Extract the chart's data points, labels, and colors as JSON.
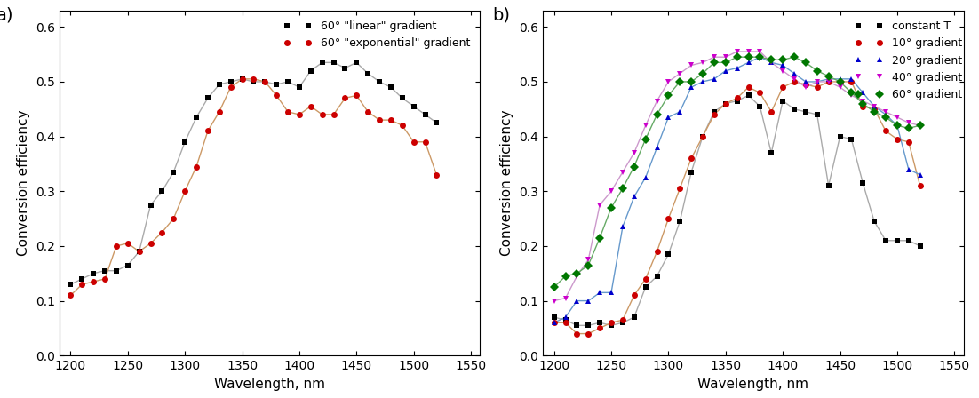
{
  "panel_a": {
    "linear_x": [
      1200,
      1210,
      1220,
      1230,
      1240,
      1250,
      1260,
      1270,
      1280,
      1290,
      1300,
      1310,
      1320,
      1330,
      1340,
      1350,
      1360,
      1370,
      1380,
      1390,
      1400,
      1410,
      1420,
      1430,
      1440,
      1450,
      1460,
      1470,
      1480,
      1490,
      1500,
      1510,
      1520
    ],
    "linear_y": [
      0.13,
      0.14,
      0.15,
      0.155,
      0.155,
      0.165,
      0.19,
      0.275,
      0.3,
      0.335,
      0.39,
      0.435,
      0.47,
      0.495,
      0.5,
      0.505,
      0.5,
      0.5,
      0.495,
      0.5,
      0.49,
      0.52,
      0.535,
      0.535,
      0.525,
      0.535,
      0.515,
      0.5,
      0.49,
      0.47,
      0.455,
      0.44,
      0.425
    ],
    "exp_x": [
      1200,
      1210,
      1220,
      1230,
      1240,
      1250,
      1260,
      1270,
      1280,
      1290,
      1300,
      1310,
      1320,
      1330,
      1340,
      1350,
      1360,
      1370,
      1380,
      1390,
      1400,
      1410,
      1420,
      1430,
      1440,
      1450,
      1460,
      1470,
      1480,
      1490,
      1500,
      1510,
      1520
    ],
    "exp_y": [
      0.11,
      0.13,
      0.135,
      0.14,
      0.2,
      0.205,
      0.19,
      0.205,
      0.225,
      0.25,
      0.3,
      0.345,
      0.41,
      0.445,
      0.49,
      0.505,
      0.505,
      0.5,
      0.475,
      0.445,
      0.44,
      0.455,
      0.44,
      0.44,
      0.47,
      0.475,
      0.445,
      0.43,
      0.43,
      0.42,
      0.39,
      0.39,
      0.33
    ],
    "label_linear": "60° \"linear\" gradient",
    "label_exp": "60° \"exponential\" gradient",
    "color_linear": "#000000",
    "color_exp": "#cc0000",
    "line_color_linear": "#aaaaaa",
    "line_color_exp": "#cc9966",
    "xlabel": "Wavelength, nm",
    "ylabel": "Conversion efficiency",
    "xlim": [
      1190,
      1558
    ],
    "ylim": [
      0.0,
      0.63
    ],
    "yticks": [
      0.0,
      0.1,
      0.2,
      0.3,
      0.4,
      0.5,
      0.6
    ],
    "xticks": [
      1200,
      1250,
      1300,
      1350,
      1400,
      1450,
      1500,
      1550
    ],
    "panel_label": "a)"
  },
  "panel_b": {
    "const_x": [
      1200,
      1210,
      1220,
      1230,
      1240,
      1250,
      1260,
      1270,
      1280,
      1290,
      1300,
      1310,
      1320,
      1330,
      1340,
      1350,
      1360,
      1370,
      1380,
      1390,
      1400,
      1410,
      1420,
      1430,
      1440,
      1450,
      1460,
      1470,
      1480,
      1490,
      1500,
      1510,
      1520
    ],
    "const_y": [
      0.07,
      0.065,
      0.055,
      0.055,
      0.06,
      0.055,
      0.06,
      0.07,
      0.125,
      0.145,
      0.185,
      0.245,
      0.335,
      0.4,
      0.445,
      0.46,
      0.465,
      0.475,
      0.455,
      0.37,
      0.465,
      0.45,
      0.445,
      0.44,
      0.31,
      0.4,
      0.395,
      0.315,
      0.245,
      0.21,
      0.21,
      0.21,
      0.2
    ],
    "grad10_x": [
      1200,
      1210,
      1220,
      1230,
      1240,
      1250,
      1260,
      1270,
      1280,
      1290,
      1300,
      1310,
      1320,
      1330,
      1340,
      1350,
      1360,
      1370,
      1380,
      1390,
      1400,
      1410,
      1420,
      1430,
      1440,
      1450,
      1460,
      1470,
      1480,
      1490,
      1500,
      1510,
      1520
    ],
    "grad10_y": [
      0.06,
      0.06,
      0.04,
      0.04,
      0.05,
      0.06,
      0.065,
      0.11,
      0.14,
      0.19,
      0.25,
      0.305,
      0.36,
      0.4,
      0.44,
      0.46,
      0.47,
      0.49,
      0.48,
      0.445,
      0.49,
      0.5,
      0.495,
      0.49,
      0.5,
      0.5,
      0.5,
      0.455,
      0.45,
      0.41,
      0.395,
      0.39,
      0.31
    ],
    "grad20_x": [
      1200,
      1210,
      1220,
      1230,
      1240,
      1250,
      1260,
      1270,
      1280,
      1290,
      1300,
      1310,
      1320,
      1330,
      1340,
      1350,
      1360,
      1370,
      1380,
      1390,
      1400,
      1410,
      1420,
      1430,
      1440,
      1450,
      1460,
      1470,
      1480,
      1490,
      1500,
      1510,
      1520
    ],
    "grad20_y": [
      0.06,
      0.07,
      0.1,
      0.1,
      0.115,
      0.115,
      0.235,
      0.29,
      0.325,
      0.38,
      0.435,
      0.445,
      0.49,
      0.5,
      0.505,
      0.52,
      0.525,
      0.535,
      0.545,
      0.535,
      0.53,
      0.515,
      0.5,
      0.5,
      0.505,
      0.505,
      0.505,
      0.48,
      0.455,
      0.44,
      0.42,
      0.34,
      0.33
    ],
    "grad40_x": [
      1200,
      1210,
      1220,
      1230,
      1240,
      1250,
      1260,
      1270,
      1280,
      1290,
      1300,
      1310,
      1320,
      1330,
      1340,
      1350,
      1360,
      1370,
      1380,
      1390,
      1400,
      1410,
      1420,
      1430,
      1440,
      1450,
      1460,
      1470,
      1480,
      1490,
      1500,
      1510,
      1520
    ],
    "grad40_y": [
      0.1,
      0.105,
      0.145,
      0.175,
      0.275,
      0.3,
      0.335,
      0.37,
      0.42,
      0.465,
      0.5,
      0.515,
      0.53,
      0.535,
      0.545,
      0.545,
      0.555,
      0.555,
      0.555,
      0.535,
      0.52,
      0.505,
      0.49,
      0.5,
      0.5,
      0.49,
      0.475,
      0.465,
      0.455,
      0.445,
      0.435,
      0.425,
      0.42
    ],
    "grad60_x": [
      1200,
      1210,
      1220,
      1230,
      1240,
      1250,
      1260,
      1270,
      1280,
      1290,
      1300,
      1310,
      1320,
      1330,
      1340,
      1350,
      1360,
      1370,
      1380,
      1390,
      1400,
      1410,
      1420,
      1430,
      1440,
      1450,
      1460,
      1470,
      1480,
      1490,
      1500,
      1510,
      1520
    ],
    "grad60_y": [
      0.125,
      0.145,
      0.15,
      0.165,
      0.215,
      0.27,
      0.305,
      0.345,
      0.395,
      0.44,
      0.475,
      0.5,
      0.5,
      0.515,
      0.535,
      0.535,
      0.545,
      0.545,
      0.545,
      0.54,
      0.54,
      0.545,
      0.535,
      0.52,
      0.51,
      0.5,
      0.48,
      0.46,
      0.445,
      0.435,
      0.42,
      0.415,
      0.42
    ],
    "label_const": "constant T",
    "label_10": "10° gradient",
    "label_20": "20° gradient",
    "label_40": "40° gradient",
    "label_60": "60° gradient",
    "color_const": "#000000",
    "color_10": "#cc0000",
    "color_20": "#0000cc",
    "color_40": "#cc00cc",
    "color_60": "#007700",
    "line_color_const": "#aaaaaa",
    "line_color_10": "#cc9966",
    "line_color_20": "#6699cc",
    "line_color_40": "#cc99cc",
    "line_color_60": "#66aa66",
    "xlabel": "Wavelength, nm",
    "ylabel": "Conversion efficiency",
    "xlim": [
      1190,
      1558
    ],
    "ylim": [
      0.0,
      0.63
    ],
    "yticks": [
      0.0,
      0.1,
      0.2,
      0.3,
      0.4,
      0.5,
      0.6
    ],
    "xticks": [
      1200,
      1250,
      1300,
      1350,
      1400,
      1450,
      1500,
      1550
    ],
    "panel_label": "b)"
  }
}
